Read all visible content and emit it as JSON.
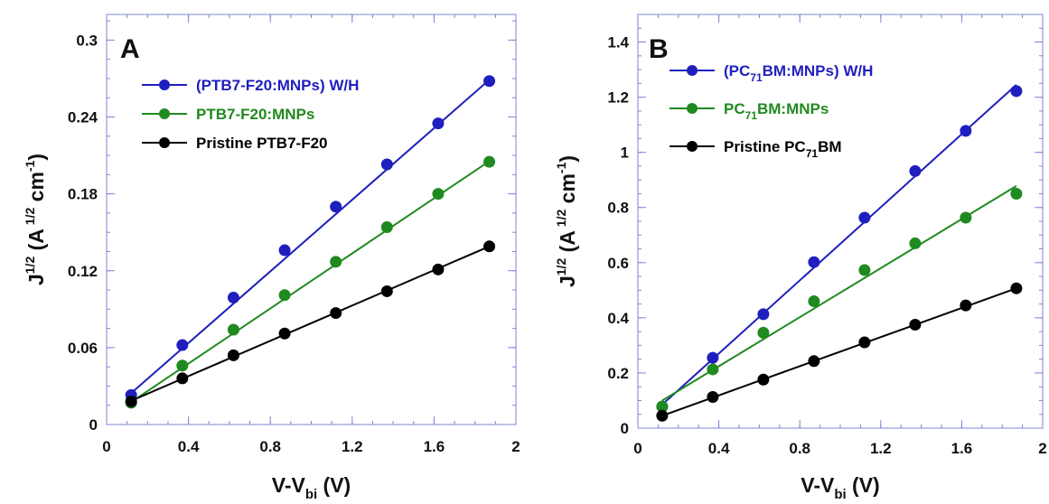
{
  "chart_data": [
    {
      "type": "scatter",
      "panel_label": "A",
      "xlabel": "V-V",
      "xlabel_sub": "bi",
      "xlabel_unit": "(V)",
      "ylabel_main": "J",
      "ylabel_sup": "1/2",
      "ylabel_rest": "(A",
      "ylabel_sup2": "1/2",
      "ylabel_unit": "cm",
      "ylabel_sup3": "-1",
      "ylabel_close": ")",
      "xlim": [
        0,
        2
      ],
      "ylim": [
        0,
        0.32
      ],
      "xticks": [
        0,
        0.4,
        0.8,
        1.2,
        1.6,
        2
      ],
      "xtick_labels": [
        "0",
        "0.4",
        "0.8",
        "1.2",
        "1.6",
        "2"
      ],
      "yticks": [
        0,
        0.06,
        0.12,
        0.18,
        0.24,
        0.3
      ],
      "ytick_labels": [
        "0",
        "0.06",
        "0.12",
        "0.18",
        "0.24",
        "0.3"
      ],
      "legend_position": "top-left",
      "grid": false,
      "series": [
        {
          "name": "(PTB7-F20:MNPs) W/H",
          "legend_parts": [
            {
              "text": "(PTB7-F20:MNPs) W/H"
            }
          ],
          "color": "#1f1fbf",
          "x": [
            0.12,
            0.37,
            0.62,
            0.87,
            1.12,
            1.37,
            1.62,
            1.87
          ],
          "y": [
            0.023,
            0.062,
            0.099,
            0.136,
            0.17,
            0.203,
            0.235,
            0.268
          ],
          "fit": [
            [
              0.12,
              0.0245
            ],
            [
              1.87,
              0.269
            ]
          ]
        },
        {
          "name": "PTB7-F20:MNPs",
          "legend_parts": [
            {
              "text": "PTB7-F20:MNPs"
            }
          ],
          "color": "#1f8a1f",
          "x": [
            0.12,
            0.37,
            0.62,
            0.87,
            1.12,
            1.37,
            1.62,
            1.87
          ],
          "y": [
            0.017,
            0.046,
            0.074,
            0.101,
            0.127,
            0.154,
            0.18,
            0.205
          ],
          "fit": [
            [
              0.12,
              0.0175
            ],
            [
              1.87,
              0.2055
            ]
          ]
        },
        {
          "name": "Pristine PTB7-F20",
          "legend_parts": [
            {
              "text": "Pristine PTB7-F20"
            }
          ],
          "color": "#000000",
          "x": [
            0.12,
            0.37,
            0.62,
            0.87,
            1.12,
            1.37,
            1.62,
            1.87
          ],
          "y": [
            0.018,
            0.036,
            0.054,
            0.071,
            0.087,
            0.104,
            0.121,
            0.139
          ],
          "fit": [
            [
              0.12,
              0.0185
            ],
            [
              1.87,
              0.139
            ]
          ]
        }
      ]
    },
    {
      "type": "scatter",
      "panel_label": "B",
      "xlabel": "V-V",
      "xlabel_sub": "bi",
      "xlabel_unit": "(V)",
      "ylabel_main": "J",
      "ylabel_sup": "1/2",
      "ylabel_rest": "(A",
      "ylabel_sup2": "1/2",
      "ylabel_unit": "cm",
      "ylabel_sup3": "-1",
      "ylabel_close": ")",
      "xlim": [
        0,
        2
      ],
      "ylim": [
        0,
        1.5
      ],
      "xticks": [
        0,
        0.4,
        0.8,
        1.2,
        1.6,
        2
      ],
      "xtick_labels": [
        "0",
        "0.4",
        "0.8",
        "1.2",
        "1.6",
        "2"
      ],
      "yticks": [
        0,
        0.2,
        0.4,
        0.6,
        0.8,
        1,
        1.2,
        1.4
      ],
      "ytick_labels": [
        "0",
        "0.2",
        "0.4",
        "0.6",
        "0.8",
        "1",
        "1.2",
        "1.4"
      ],
      "legend_position": "top-left",
      "grid": false,
      "series": [
        {
          "name": "(PC71BM:MNPs) W/H",
          "legend_parts": [
            {
              "text": "(PC"
            },
            {
              "text": "71",
              "sub": true
            },
            {
              "text": "BM:MNPs) W/H"
            }
          ],
          "color": "#1f1fbf",
          "x": [
            0.12,
            0.37,
            0.62,
            0.87,
            1.12,
            1.37,
            1.62,
            1.87
          ],
          "y": [
            0.078,
            0.255,
            0.413,
            0.602,
            0.763,
            0.932,
            1.078,
            1.222
          ],
          "fit": [
            [
              0.12,
              0.085
            ],
            [
              1.87,
              1.245
            ]
          ]
        },
        {
          "name": "PC71BM:MNPs",
          "legend_parts": [
            {
              "text": "PC"
            },
            {
              "text": "71",
              "sub": true
            },
            {
              "text": "BM:MNPs"
            }
          ],
          "color": "#1f8a1f",
          "x": [
            0.12,
            0.37,
            0.62,
            0.87,
            1.12,
            1.37,
            1.62,
            1.87
          ],
          "y": [
            0.078,
            0.213,
            0.346,
            0.46,
            0.573,
            0.67,
            0.763,
            0.85
          ],
          "fit": [
            [
              0.12,
              0.1
            ],
            [
              1.87,
              0.878
            ]
          ]
        },
        {
          "name": "Pristine PC71BM",
          "legend_parts": [
            {
              "text": "Pristine PC"
            },
            {
              "text": "71",
              "sub": true
            },
            {
              "text": "BM"
            }
          ],
          "color": "#000000",
          "x": [
            0.12,
            0.37,
            0.62,
            0.87,
            1.12,
            1.37,
            1.62,
            1.87
          ],
          "y": [
            0.045,
            0.113,
            0.176,
            0.243,
            0.311,
            0.375,
            0.445,
            0.507
          ],
          "fit": [
            [
              0.12,
              0.045
            ],
            [
              1.87,
              0.507
            ]
          ]
        }
      ]
    }
  ]
}
